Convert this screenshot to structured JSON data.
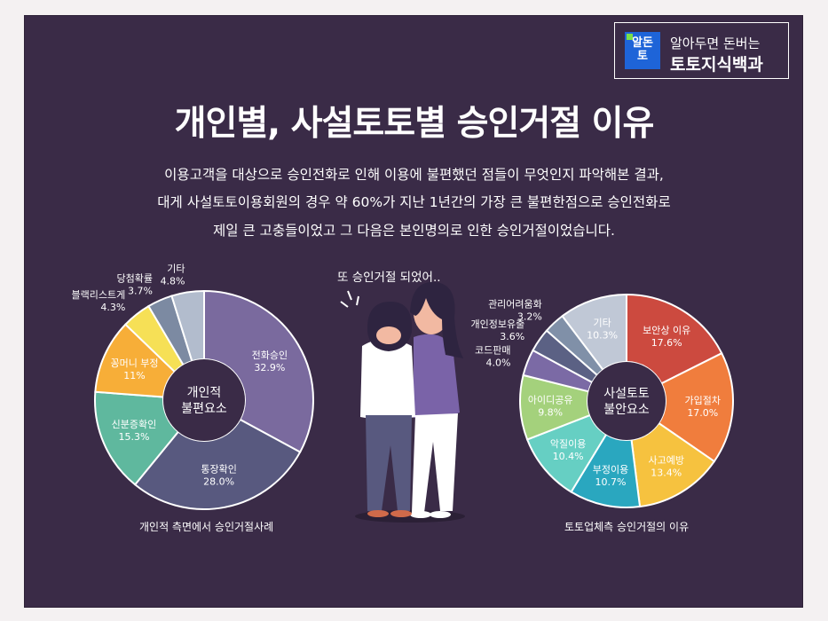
{
  "brand": {
    "badge_lines": [
      "알돈",
      "토"
    ],
    "tagline": "알아두면 돈버는",
    "name": "토토지식백과"
  },
  "title": "개인별, 사설토토별 승인거절 이유",
  "description": [
    "이용고객을 대상으로 승인전화로 인해 이용에 불편했던 점들이 무엇인지 파악해본 결과,",
    "대게 사설토토이용회원의 경우 약 60%가 지난 1년간의 가장 큰 불편한점으로 승인전화로",
    "제일 큰 고충들이었고 그 다음은 본인명의로 인한 승인거절이었습니다."
  ],
  "illustration": {
    "speech": "또 승인거절 되었어.."
  },
  "chart_data": [
    {
      "type": "pie",
      "center_label": [
        "개인적",
        "불편요소"
      ],
      "caption": "개인적 측면에서 승인거절사례",
      "slices": [
        {
          "label": "전화승인",
          "value": 32.9,
          "value_text": "32.9%",
          "color": "#7a6a9e"
        },
        {
          "label": "통장확인",
          "value": 28.0,
          "value_text": "28.0%",
          "color": "#58597f"
        },
        {
          "label": "신분증확인",
          "value": 15.3,
          "value_text": "15.3%",
          "color": "#5fb89e"
        },
        {
          "label": "꽁머니 부정",
          "value": 11,
          "value_text": "11%",
          "color": "#f7ae38"
        },
        {
          "label": "블랙리스트게",
          "value": 4.3,
          "value_text": "4.3%",
          "color": "#f6e056"
        },
        {
          "label": "당첨확률",
          "value": 3.7,
          "value_text": "3.7%",
          "color": "#7c8aa2"
        },
        {
          "label": "기타",
          "value": 4.8,
          "value_text": "4.8%",
          "color": "#b2bccd"
        }
      ]
    },
    {
      "type": "pie",
      "center_label": [
        "사설토토",
        "불안요소"
      ],
      "caption": "토토업체측 승인거절의 이유",
      "slices": [
        {
          "label": "보안상 이유",
          "value": 17.6,
          "value_text": "17.6%",
          "color": "#cc4a3f"
        },
        {
          "label": "가입절차",
          "value": 17.0,
          "value_text": "17.0%",
          "color": "#f07d3d"
        },
        {
          "label": "사고예방",
          "value": 13.4,
          "value_text": "13.4%",
          "color": "#f6c23f"
        },
        {
          "label": "부정이용",
          "value": 10.7,
          "value_text": "10.7%",
          "color": "#2aa7bf"
        },
        {
          "label": "악질이용",
          "value": 10.4,
          "value_text": "10.4%",
          "color": "#66cfc3"
        },
        {
          "label": "아이디공유",
          "value": 9.8,
          "value_text": "9.8%",
          "color": "#a4d17c"
        },
        {
          "label": "코드판매",
          "value": 4.0,
          "value_text": "4.0%",
          "color": "#7b6aa5"
        },
        {
          "label": "개인정보유출",
          "value": 3.6,
          "value_text": "3.6%",
          "color": "#5b6184"
        },
        {
          "label": "관리어려움화",
          "value": 3.2,
          "value_text": "3.2%",
          "color": "#8090a8"
        },
        {
          "label": "기타",
          "value": 10.3,
          "value_text": "10.3%",
          "color": "#c0c8d6"
        }
      ]
    }
  ]
}
